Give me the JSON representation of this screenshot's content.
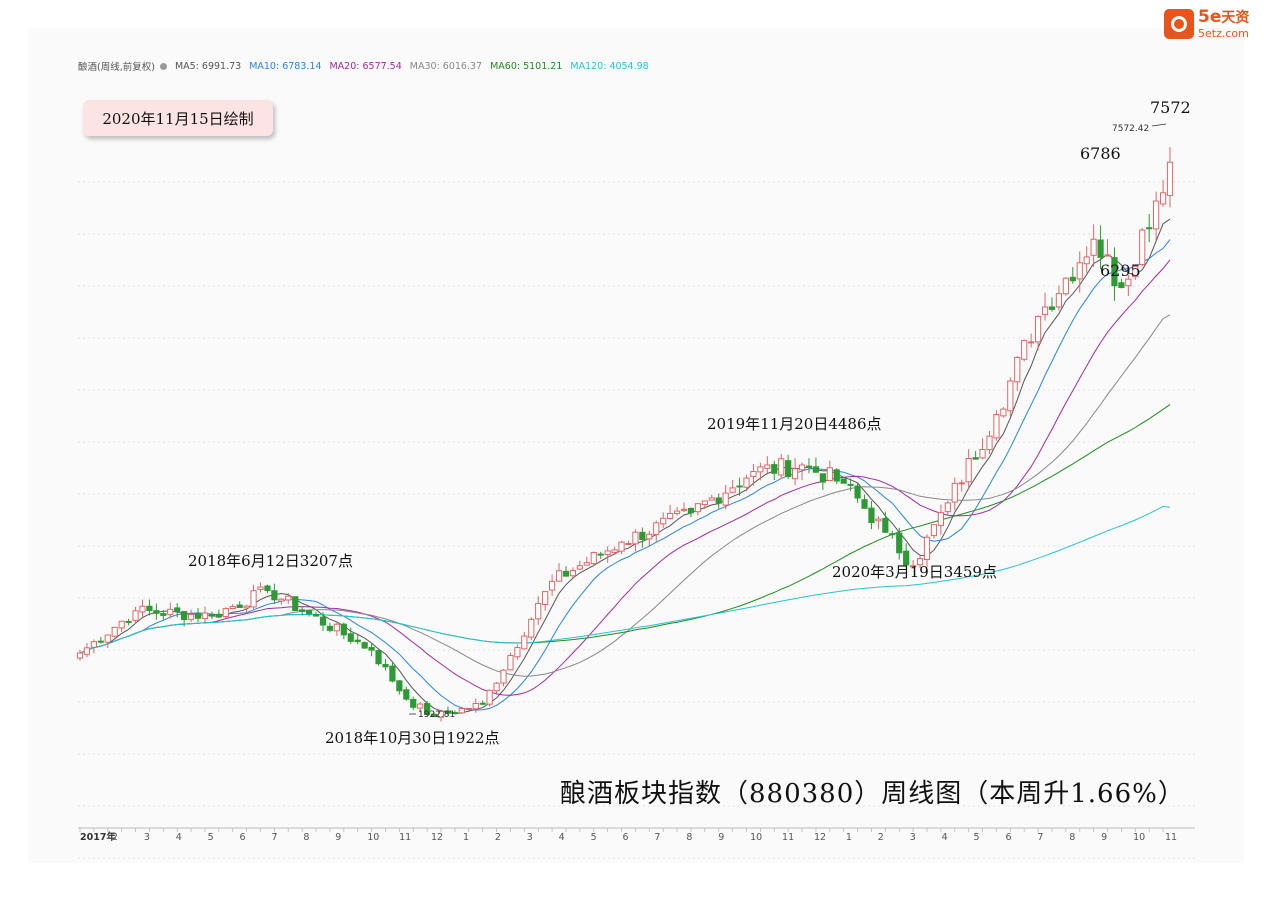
{
  "legend": {
    "name": "酿酒(周线,前复权)",
    "items": [
      {
        "label": "MA5: 6991.73",
        "color": "#555555"
      },
      {
        "label": "MA10: 6783.14",
        "color": "#2c84d9"
      },
      {
        "label": "MA20: 6577.54",
        "color": "#a02ca0"
      },
      {
        "label": "MA30: 6016.37",
        "color": "#888888"
      },
      {
        "label": "MA60: 5101.21",
        "color": "#228b22"
      },
      {
        "label": "MA120: 4054.98",
        "color": "#27c4d6"
      }
    ]
  },
  "date_badge": "2020年11月15日绘制",
  "logo": {
    "brand": "5e",
    "brand_cn": "天资",
    "domain": "5etz.com"
  },
  "chart_data": {
    "type": "candlestick",
    "title": "酿酒板块指数（880380）周线图（本周升1.66%）",
    "x_labels": [
      "2017年",
      "2",
      "3",
      "4",
      "5",
      "6",
      "7",
      "8",
      "9",
      "10",
      "11",
      "12",
      "1",
      "2",
      "3",
      "4",
      "5",
      "6",
      "7",
      "8",
      "9",
      "10",
      "11",
      "12",
      "1",
      "2",
      "3",
      "4",
      "5",
      "6",
      "7",
      "8",
      "9",
      "10",
      "11"
    ],
    "y_range": [
      1500,
      7900
    ],
    "up_color": "#e06666",
    "down_color": "#2e9a35",
    "annotations": [
      {
        "text": "2018年6月12日3207点",
        "at": 3207
      },
      {
        "text": "2018年10月30日1922点",
        "at": 1922
      },
      {
        "text": "2019年11月20日4486点",
        "at": 4486
      },
      {
        "text": "2020年3月19日3459点",
        "at": 3459
      },
      {
        "text": "6786",
        "at": 6786
      },
      {
        "text": "6295",
        "at": 6295
      },
      {
        "text": "7572",
        "at": 7572
      }
    ],
    "low_marker": "1922.81",
    "high_marker": "7572.42",
    "key_points": [
      {
        "week": 0,
        "close": 2570
      },
      {
        "week": 8,
        "close": 3000
      },
      {
        "week": 19,
        "close": 2950
      },
      {
        "week": 27,
        "close": 3207
      },
      {
        "week": 42,
        "close": 2600
      },
      {
        "week": 47,
        "close": 2100
      },
      {
        "week": 51,
        "close": 1922
      },
      {
        "week": 58,
        "close": 2050
      },
      {
        "week": 68,
        "close": 3300
      },
      {
        "week": 78,
        "close": 3700
      },
      {
        "week": 88,
        "close": 4000
      },
      {
        "week": 97,
        "close": 4420
      },
      {
        "week": 104,
        "close": 4486
      },
      {
        "week": 110,
        "close": 4300
      },
      {
        "week": 116,
        "close": 3800
      },
      {
        "week": 120,
        "close": 3459
      },
      {
        "week": 125,
        "close": 4100
      },
      {
        "week": 132,
        "close": 5000
      },
      {
        "week": 138,
        "close": 6000
      },
      {
        "week": 146,
        "close": 6786
      },
      {
        "week": 150,
        "close": 6295
      },
      {
        "week": 157,
        "close": 7572
      }
    ],
    "ma_end_values": {
      "MA5": 6991.73,
      "MA10": 6783.14,
      "MA20": 6577.54,
      "MA30": 6016.37,
      "MA60": 5101.21,
      "MA120": 4054.98
    }
  }
}
